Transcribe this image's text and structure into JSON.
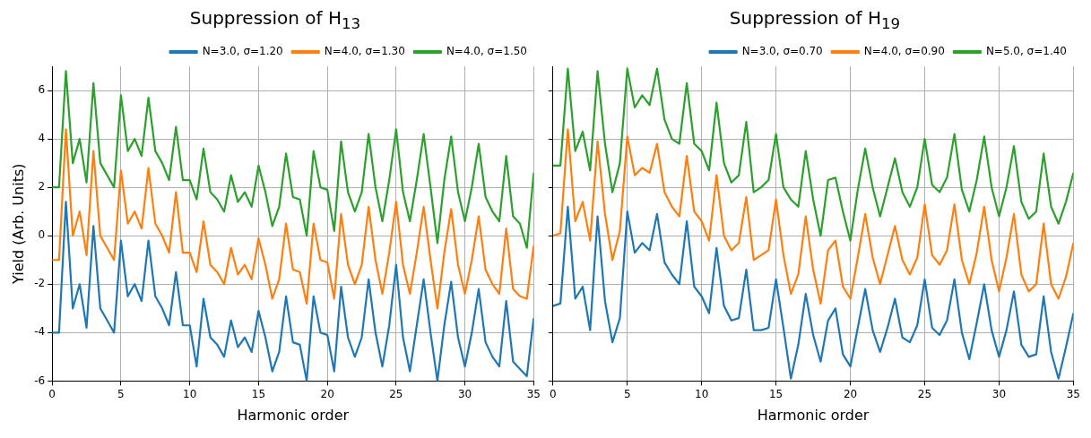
{
  "chart_data": [
    {
      "type": "line",
      "title": "Suppression of H$_{13}$",
      "xlabel": "Harmonic order",
      "ylabel": "Yield (Arb. Units)",
      "x": [
        0,
        0.5,
        1,
        1.5,
        2,
        2.5,
        3,
        3.5,
        4,
        4.5,
        5,
        5.5,
        6,
        6.5,
        7,
        7.5,
        8,
        8.5,
        9,
        9.5,
        10,
        10.5,
        11,
        11.5,
        12,
        12.5,
        13,
        13.5,
        14,
        14.5,
        15,
        15.5,
        16,
        16.5,
        17,
        17.5,
        18,
        18.5,
        19,
        19.5,
        20,
        20.5,
        21,
        21.5,
        22,
        22.5,
        23,
        23.5,
        24,
        24.5,
        25,
        25.5,
        26,
        26.5,
        27,
        27.5,
        28,
        28.5,
        29,
        29.5,
        30,
        30.5,
        31,
        31.5,
        32,
        32.5,
        33,
        33.5,
        34,
        34.5,
        35
      ],
      "series": [
        {
          "name": "N=3.0, σ=1.20",
          "color": "#1f77b4",
          "values": [
            -4,
            -4,
            1.4,
            -3.0,
            -2.0,
            -3.8,
            0.4,
            -3.0,
            -3.5,
            -4.0,
            -0.2,
            -2.5,
            -2.0,
            -2.7,
            -0.2,
            -2.5,
            -3.0,
            -3.7,
            -1.5,
            -3.7,
            -3.7,
            -5.4,
            -2.6,
            -4.2,
            -4.5,
            -5.0,
            -3.5,
            -4.6,
            -4.2,
            -4.8,
            -3.1,
            -4.2,
            -5.6,
            -4.8,
            -2.5,
            -4.4,
            -4.5,
            -6.0,
            -2.5,
            -4.0,
            -4.1,
            -5.6,
            -2.1,
            -4.2,
            -5.0,
            -4.2,
            -1.8,
            -4.0,
            -5.4,
            -3.7,
            -1.2,
            -4.2,
            -5.6,
            -3.7,
            -1.8,
            -4.0,
            -6.0,
            -3.7,
            -1.9,
            -4.2,
            -5.4,
            -4.0,
            -2.2,
            -4.4,
            -5.0,
            -5.4,
            -2.7,
            -5.2,
            -5.5,
            -5.8,
            -3.4
          ]
        },
        {
          "name": "N=4.0, σ=1.30",
          "color": "#ff7f0e",
          "values": [
            -1,
            -1,
            4.4,
            0,
            1.0,
            -0.8,
            3.5,
            0,
            -0.5,
            -1.0,
            2.7,
            0.5,
            1.0,
            0.3,
            2.8,
            0.5,
            0,
            -0.7,
            1.8,
            -0.7,
            -0.7,
            -1.5,
            0.6,
            -1.2,
            -1.5,
            -2.0,
            -0.5,
            -1.6,
            -1.2,
            -1.8,
            -0.1,
            -1.2,
            -2.6,
            -1.8,
            0.5,
            -1.4,
            -1.5,
            -2.8,
            0.5,
            -1.0,
            -1.1,
            -2.6,
            0.9,
            -1.2,
            -2.0,
            -1.2,
            1.2,
            -1.0,
            -2.4,
            -0.7,
            1.4,
            -1.2,
            -2.4,
            -0.7,
            1.2,
            -1.0,
            -3.0,
            -0.7,
            1.1,
            -1.2,
            -2.4,
            -1.0,
            0.8,
            -1.4,
            -2.0,
            -2.4,
            0.3,
            -2.2,
            -2.5,
            -2.6,
            -0.4
          ]
        },
        {
          "name": "N=4.0, σ=1.50",
          "color": "#2ca02c",
          "values": [
            2.0,
            2.0,
            6.8,
            3.0,
            4.0,
            2.2,
            6.3,
            3.0,
            2.5,
            2.0,
            5.8,
            3.5,
            4.0,
            3.3,
            5.7,
            3.5,
            3.0,
            2.3,
            4.5,
            2.3,
            2.3,
            1.5,
            3.6,
            1.8,
            1.5,
            1.0,
            2.5,
            1.4,
            1.8,
            1.2,
            2.9,
            1.8,
            0.4,
            1.2,
            3.4,
            1.6,
            1.5,
            0.0,
            3.5,
            2.0,
            1.9,
            0.2,
            3.9,
            1.8,
            1.0,
            1.8,
            4.2,
            2.0,
            0.6,
            2.3,
            4.4,
            1.8,
            0.6,
            2.3,
            4.2,
            2.0,
            -0.3,
            2.3,
            4.1,
            1.8,
            0.6,
            2.0,
            3.8,
            1.6,
            1.0,
            0.6,
            3.3,
            0.8,
            0.5,
            -0.5,
            2.6
          ]
        }
      ],
      "xlim": [
        0,
        35
      ],
      "xticks": [
        0,
        5,
        10,
        15,
        20,
        25,
        30,
        35
      ],
      "ylim": [
        -6,
        7
      ],
      "yticks": [
        -6,
        -4,
        -2,
        0,
        2,
        4,
        6
      ],
      "grid": true,
      "legend": "top right"
    },
    {
      "type": "line",
      "title": "Suppression of H$_{19}$",
      "xlabel": "Harmonic order",
      "x": [
        0,
        0.5,
        1,
        1.5,
        2,
        2.5,
        3,
        3.5,
        4,
        4.5,
        5,
        5.5,
        6,
        6.5,
        7,
        7.5,
        8,
        8.5,
        9,
        9.5,
        10,
        10.5,
        11,
        11.5,
        12,
        12.5,
        13,
        13.5,
        14,
        14.5,
        15,
        15.5,
        16,
        16.5,
        17,
        17.5,
        18,
        18.5,
        19,
        19.5,
        20,
        20.5,
        21,
        21.5,
        22,
        22.5,
        23,
        23.5,
        24,
        24.5,
        25,
        25.5,
        26,
        26.5,
        27,
        27.5,
        28,
        28.5,
        29,
        29.5,
        30,
        30.5,
        31,
        31.5,
        32,
        32.5,
        33,
        33.5,
        34,
        34.5,
        35
      ],
      "series": [
        {
          "name": "N=3.0, σ=0.70",
          "color": "#1f77b4",
          "values": [
            -2.9,
            -2.8,
            1.2,
            -2.6,
            -2.1,
            -3.9,
            0.8,
            -2.7,
            -4.4,
            -3.4,
            1.0,
            -0.7,
            -0.3,
            -0.6,
            0.9,
            -1.1,
            -1.6,
            -2.0,
            0.6,
            -2.1,
            -2.5,
            -3.2,
            -0.5,
            -2.9,
            -3.5,
            -3.4,
            -1.4,
            -3.9,
            -3.9,
            -3.8,
            -1.8,
            -3.8,
            -5.9,
            -4.5,
            -2.4,
            -4.1,
            -5.2,
            -3.5,
            -3.0,
            -4.9,
            -5.4,
            -3.8,
            -2.2,
            -3.9,
            -4.8,
            -3.8,
            -2.6,
            -4.2,
            -4.4,
            -3.7,
            -1.8,
            -3.8,
            -4.1,
            -3.5,
            -1.8,
            -4.0,
            -5.1,
            -3.6,
            -2.0,
            -3.9,
            -5.0,
            -3.9,
            -2.3,
            -4.5,
            -5.0,
            -4.9,
            -2.5,
            -4.8,
            -5.9,
            -4.6,
            -3.2
          ]
        },
        {
          "name": "N=4.0, σ=0.90",
          "color": "#ff7f0e",
          "values": [
            0,
            0.1,
            4.4,
            0.6,
            1.4,
            -0.2,
            3.9,
            0.9,
            -1.0,
            0.2,
            4.1,
            2.5,
            2.8,
            2.6,
            3.8,
            1.8,
            1.2,
            0.8,
            3.3,
            1.0,
            0.6,
            -0.2,
            2.5,
            0.0,
            -0.6,
            -0.3,
            1.6,
            -1.0,
            -0.8,
            -0.6,
            1.5,
            -0.8,
            -2.4,
            -1.6,
            0.8,
            -1.4,
            -2.8,
            -0.6,
            -0.2,
            -2.1,
            -2.6,
            -0.9,
            0.9,
            -0.9,
            -2.0,
            -0.8,
            0.4,
            -1.0,
            -1.6,
            -0.9,
            1.3,
            -0.8,
            -1.2,
            -0.6,
            1.3,
            -1.0,
            -2.0,
            -0.7,
            1.2,
            -1.0,
            -2.3,
            -0.9,
            0.9,
            -1.6,
            -2.3,
            -2.0,
            0.5,
            -2.0,
            -2.6,
            -1.7,
            -0.3
          ]
        },
        {
          "name": "N=5.0, σ=1.40",
          "color": "#2ca02c",
          "values": [
            2.9,
            2.9,
            6.9,
            3.5,
            4.3,
            2.7,
            6.8,
            3.8,
            1.8,
            3.0,
            6.9,
            5.3,
            5.8,
            5.4,
            6.9,
            4.8,
            4.0,
            3.8,
            6.3,
            3.8,
            3.5,
            2.7,
            5.5,
            3.0,
            2.2,
            2.5,
            4.7,
            1.8,
            2.0,
            2.3,
            4.2,
            2.0,
            1.5,
            1.2,
            3.5,
            1.5,
            0.0,
            2.3,
            2.4,
            1.0,
            -0.2,
            1.9,
            3.6,
            2.0,
            0.8,
            2.0,
            3.2,
            1.8,
            1.2,
            2.0,
            4.0,
            2.1,
            1.8,
            2.4,
            4.2,
            1.9,
            1.0,
            2.3,
            4.1,
            2.0,
            0.8,
            2.0,
            3.7,
            1.4,
            0.7,
            1.0,
            3.4,
            1.2,
            0.5,
            1.4,
            2.6
          ]
        }
      ],
      "xlim": [
        0,
        35
      ],
      "xticks": [
        0,
        5,
        10,
        15,
        20,
        25,
        30,
        35
      ],
      "ylim": [
        -6,
        7
      ],
      "yticks": [
        -6,
        -4,
        -2,
        0,
        2,
        4,
        6
      ],
      "grid": true,
      "legend": "top right",
      "tick_labels": "x"
    }
  ]
}
